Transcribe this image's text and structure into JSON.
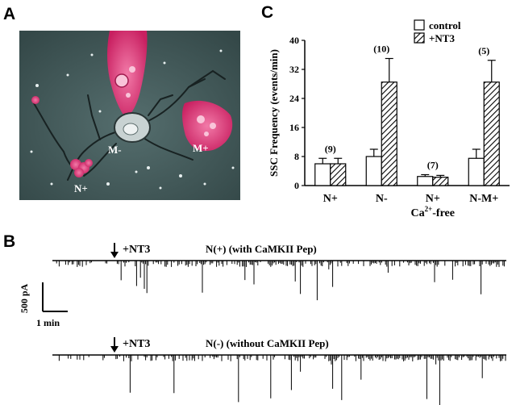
{
  "panels": {
    "a": "A",
    "b": "B",
    "c": "C"
  },
  "micrograph": {
    "labels": {
      "m_minus": "M-",
      "m_plus": "M+",
      "n_plus": "N+"
    },
    "colors": {
      "background": "#3f5858",
      "cell": "#e5397a",
      "soma": "#bfc8c8",
      "neurite": "#1c2828"
    }
  },
  "chart_data": {
    "type": "bar",
    "title": "",
    "xlabel": "",
    "ylabel": "SSC Frequency (events/min)",
    "ylim": [
      0,
      40
    ],
    "yticks": [
      0,
      8,
      16,
      24,
      32,
      40
    ],
    "categories": [
      "N+",
      "N-",
      "N+",
      "N-M+"
    ],
    "category_sublabel": {
      "text": "Ca",
      "sup": "2+",
      "suffix": "-free",
      "under_category_index": 2
    },
    "series": [
      {
        "name": "control",
        "values": [
          6.0,
          8.0,
          2.5,
          7.5
        ],
        "errors": [
          1.5,
          2.0,
          0.5,
          2.5
        ],
        "pattern": "open"
      },
      {
        "name": "+NT3",
        "values": [
          6.0,
          28.5,
          2.3,
          28.5
        ],
        "errors": [
          1.5,
          6.5,
          0.5,
          6.0
        ],
        "pattern": "hatched"
      }
    ],
    "annotations": [
      "(9)",
      "(10)",
      "(7)",
      "(5)"
    ],
    "legend_position": "top-right"
  },
  "traces": [
    {
      "label": "N(+)  (with CaMKII Pep)",
      "marker": "+NT3"
    },
    {
      "label": "N(-) (without CaMKII Pep)",
      "marker": "+NT3"
    }
  ],
  "scale_bar": {
    "amplitude": "500 pA",
    "time": "1 min"
  }
}
